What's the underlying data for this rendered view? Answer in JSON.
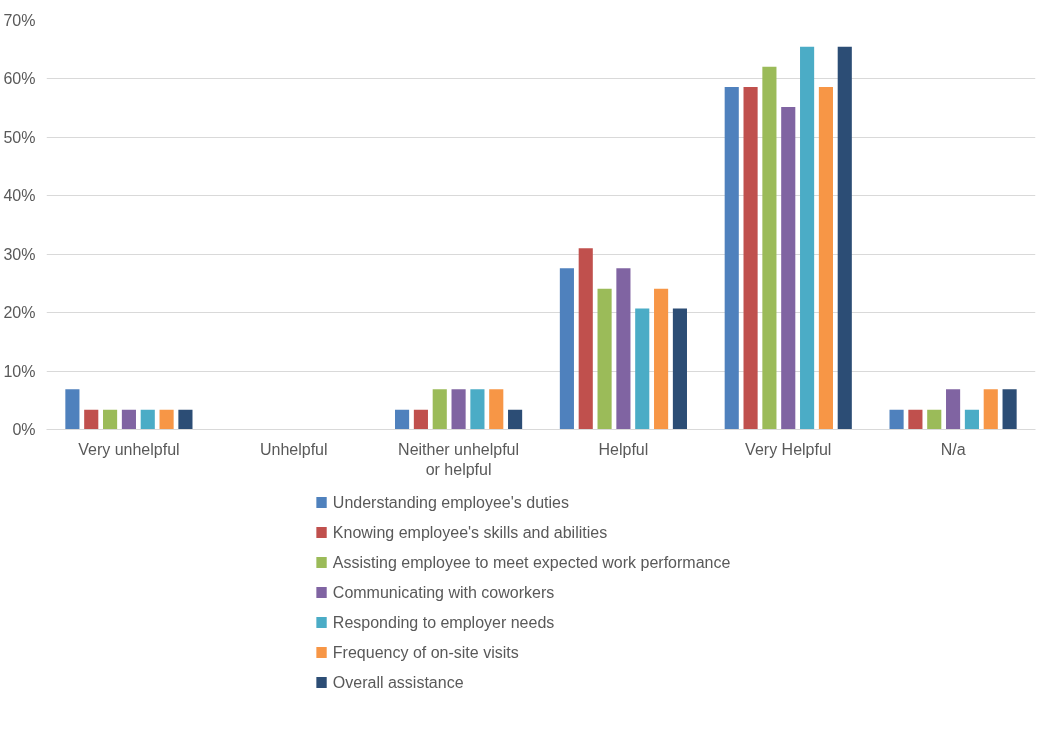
{
  "chart_data": {
    "type": "bar",
    "categories": [
      "Very unhelpful",
      "Unhelpful",
      "Neither unhelpful or helpful",
      "Helpful",
      "Very Helpful",
      "N/a"
    ],
    "series": [
      {
        "name": "Understanding employee's duties",
        "color": "#4f81bd",
        "values": [
          6.9,
          0,
          3.4,
          27.6,
          58.6,
          3.4
        ]
      },
      {
        "name": "Knowing employee's skills and abilities",
        "color": "#c0504d",
        "values": [
          3.4,
          0,
          3.4,
          31.0,
          58.6,
          3.4
        ]
      },
      {
        "name": "Assisting employee to meet expected work performance",
        "color": "#9bbb59",
        "values": [
          3.4,
          0,
          6.9,
          24.1,
          62.1,
          3.4
        ]
      },
      {
        "name": "Communicating with coworkers",
        "color": "#8064a2",
        "values": [
          3.4,
          0,
          6.9,
          27.6,
          55.2,
          6.9
        ]
      },
      {
        "name": "Responding to employer needs",
        "color": "#4bacc6",
        "values": [
          3.4,
          0,
          6.9,
          20.7,
          65.5,
          3.4
        ]
      },
      {
        "name": "Frequency of on-site visits",
        "color": "#f79646",
        "values": [
          3.4,
          0,
          6.9,
          24.1,
          58.6,
          6.9
        ]
      },
      {
        "name": "Overall assistance",
        "color": "#2c4d75",
        "values": [
          3.4,
          0,
          3.4,
          20.7,
          65.5,
          6.9
        ]
      }
    ],
    "ylim": [
      0,
      70
    ],
    "yticks": [
      {
        "value": 0,
        "label": "0%"
      },
      {
        "value": 10,
        "label": "10%"
      },
      {
        "value": 20,
        "label": "20%"
      },
      {
        "value": 30,
        "label": "30%"
      },
      {
        "value": 40,
        "label": "40%"
      },
      {
        "value": 50,
        "label": "50%"
      },
      {
        "value": 60,
        "label": "60%"
      },
      {
        "value": 70,
        "label": "70%"
      }
    ],
    "grid": "y",
    "legend": "bottom"
  }
}
